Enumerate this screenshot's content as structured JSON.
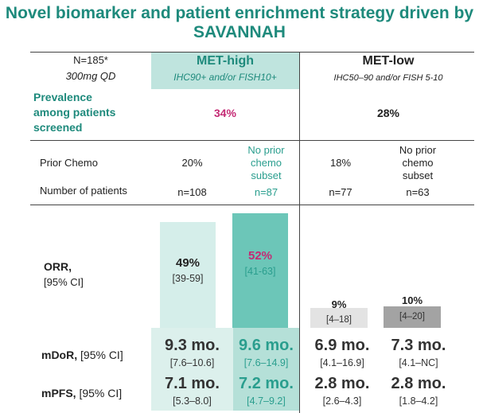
{
  "title": {
    "line1": "Novel biomarker and patient enrichment strategy driven by",
    "line2": "SAVANNAH"
  },
  "header": {
    "n_label": "N=185*",
    "dose": "300mg QD",
    "met_high": "MET-high",
    "met_high_def": "IHC90+ and/or FISH10+",
    "met_low": "MET-low",
    "met_low_def": "IHC50–90 and/or FISH 5-10"
  },
  "prevalence": {
    "label_l1": "Prevalence",
    "label_l2": "among patients",
    "label_l3": "screened",
    "met_high": "34%",
    "met_low": "28%"
  },
  "prior_chemo": {
    "label": "Prior Chemo",
    "values": [
      "20%",
      "18%"
    ],
    "subset_l1": "No prior",
    "subset_l2": "chemo",
    "subset_l3": "subset"
  },
  "patients": {
    "label": "Number of patients",
    "values": [
      "n=108",
      "n=87",
      "n=77",
      "n=63"
    ]
  },
  "orr": {
    "label": "ORR,",
    "ci_label": "[95% CI]",
    "values": [
      "49%",
      "52%",
      "9%",
      "10%"
    ],
    "percent": [
      49,
      52,
      9,
      10
    ],
    "ci": [
      "[39-59]",
      "[41-63]",
      "[4–18]",
      "[4–20]"
    ]
  },
  "mdor": {
    "label": "mDoR,",
    "ci_label": "[95% CI]",
    "values": [
      "9.3 mo.",
      "9.6 mo.",
      "6.9 mo.",
      "7.3 mo."
    ],
    "ci": [
      "[7.6–10.6]",
      "[7.6–14.9]",
      "[4.1–16.9]",
      "[4.1–NC]"
    ]
  },
  "mpfs": {
    "label": "mPFS,",
    "ci_label": "[95% CI]",
    "values": [
      "7.1 mo.",
      "7.2 mo.",
      "2.8 mo.",
      "2.8 mo."
    ],
    "ci": [
      "[5.3–8.0]",
      "[4.7–9.2]",
      "[2.6–4.3]",
      "[1.8–4.2]"
    ]
  },
  "colors": {
    "title": "#1e8a7c",
    "met_high_light": "#d5eeea",
    "met_high_dark": "#6cc6b8",
    "met_low_light": "#e3e3e3",
    "met_low_dark": "#a3a3a3",
    "highlight": "#c42a74"
  }
}
